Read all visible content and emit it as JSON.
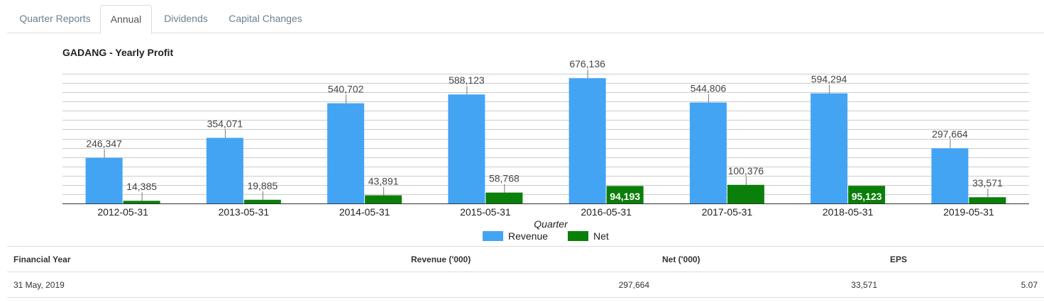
{
  "tabs": [
    {
      "label": "Quarter Reports",
      "active": false
    },
    {
      "label": "Annual",
      "active": true
    },
    {
      "label": "Dividends",
      "active": false
    },
    {
      "label": "Capital Changes",
      "active": false
    }
  ],
  "colors": {
    "revenue": "#44a4f4",
    "net": "#0a7f0a",
    "gridline": "#cccccc",
    "baseline": "#333333"
  },
  "chart_data": {
    "type": "bar",
    "title": "GADANG - Yearly Profit",
    "xlabel": "Quarter",
    "ylabel": "",
    "ylim": [
      0,
      700000
    ],
    "grid": true,
    "legend": "bottom",
    "categories": [
      "2012-05-31",
      "2013-05-31",
      "2014-05-31",
      "2015-05-31",
      "2016-05-31",
      "2017-05-31",
      "2018-05-31",
      "2019-05-31"
    ],
    "series": [
      {
        "name": "Revenue",
        "values": [
          246347,
          354071,
          540702,
          588123,
          676136,
          544806,
          594294,
          297664
        ],
        "labels": [
          "246,347",
          "354,071",
          "540,702",
          "588,123",
          "676,136",
          "544,806",
          "594,294",
          "297,664"
        ]
      },
      {
        "name": "Net",
        "values": [
          14385,
          19885,
          43891,
          58768,
          94193,
          100376,
          95123,
          33571
        ],
        "labels": [
          "14,385",
          "19,885",
          "43,891",
          "58,768",
          "94,193",
          "100,376",
          "95,123",
          "33,571"
        ]
      }
    ]
  },
  "table": {
    "headers": {
      "year": "Financial Year",
      "revenue": "Revenue ('000)",
      "net": "Net ('000)",
      "eps": "EPS"
    },
    "rows": [
      {
        "year": "31 May, 2019",
        "revenue": "297,664",
        "net": "33,571",
        "eps": "5.07"
      }
    ]
  }
}
